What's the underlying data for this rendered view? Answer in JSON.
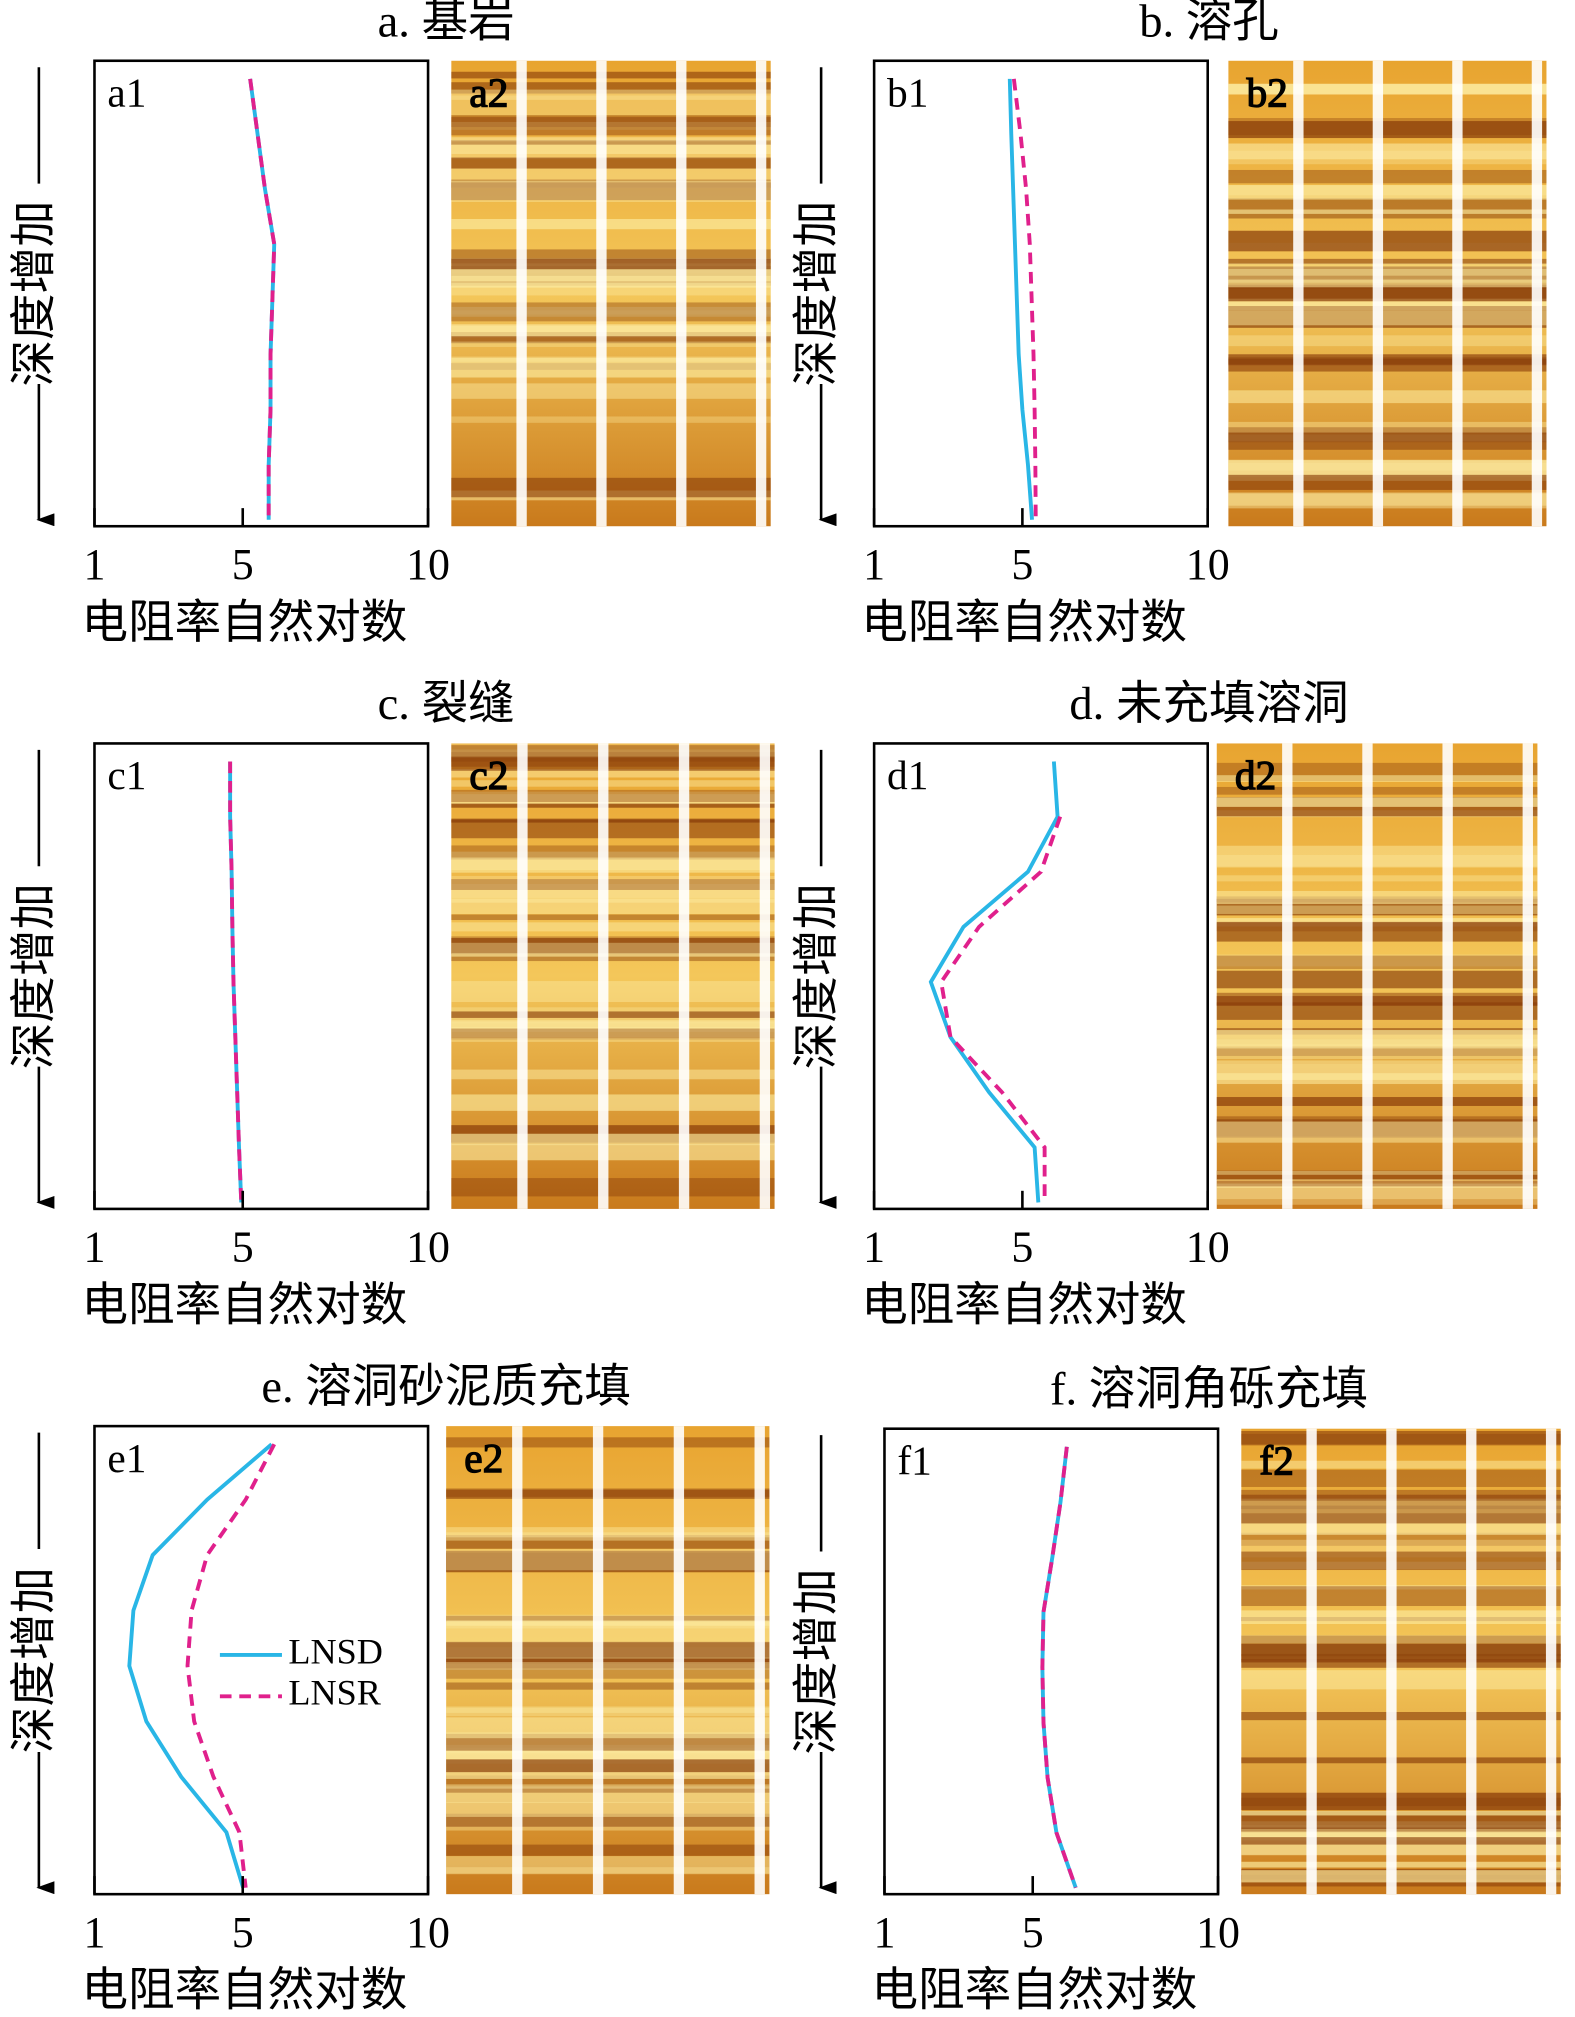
{
  "chart_data": [
    {
      "type": "line",
      "title": "a. 基岩",
      "panel_label": "a1",
      "image_label": "a2",
      "ylabel": "深度增加",
      "xlabel": "电阻率自然对数",
      "categories": [
        null,
        null,
        null,
        null,
        null,
        null,
        null,
        null,
        null
      ],
      "xlim": [
        1,
        10
      ],
      "xticks": [
        1,
        5,
        10
      ],
      "legend": false,
      "series": [
        {
          "name": "LNSD",
          "color": "#29b6e6",
          "style": "solid",
          "values": [
            5.2,
            5.4,
            5.6,
            5.85,
            5.8,
            5.75,
            5.75,
            5.7,
            5.7
          ]
        },
        {
          "name": "LNSR",
          "color": "#e0208c",
          "style": "dashed",
          "values": [
            5.2,
            5.4,
            5.6,
            5.85,
            5.8,
            5.75,
            5.75,
            5.7,
            5.7
          ]
        }
      ]
    },
    {
      "type": "line",
      "title": "b. 溶孔",
      "panel_label": "b1",
      "image_label": "b2",
      "ylabel": "深度增加",
      "xlabel": "电阻率自然对数",
      "categories": [
        null,
        null,
        null,
        null,
        null,
        null,
        null,
        null,
        null
      ],
      "xlim": [
        1,
        10
      ],
      "xticks": [
        1,
        5,
        10
      ],
      "legend": false,
      "series": [
        {
          "name": "LNSD",
          "color": "#29b6e6",
          "style": "solid",
          "values": [
            4.66,
            4.7,
            4.75,
            4.8,
            4.85,
            4.9,
            5.0,
            5.15,
            5.26
          ]
        },
        {
          "name": "LNSR",
          "color": "#e0208c",
          "style": "dashed",
          "values": [
            4.77,
            4.95,
            5.1,
            5.2,
            5.25,
            5.3,
            5.33,
            5.35,
            5.36
          ]
        }
      ]
    },
    {
      "type": "line",
      "title": "c. 裂缝",
      "panel_label": "c1",
      "image_label": "c2",
      "ylabel": "深度增加",
      "xlabel": "电阻率自然对数",
      "categories": [
        null,
        null,
        null,
        null,
        null,
        null,
        null,
        null,
        null
      ],
      "xlim": [
        1,
        10
      ],
      "xticks": [
        1,
        5,
        10
      ],
      "legend": false,
      "series": [
        {
          "name": "LNSD",
          "color": "#29b6e6",
          "style": "solid",
          "values": [
            4.66,
            4.66,
            4.7,
            4.72,
            4.75,
            4.8,
            4.85,
            4.9,
            4.96
          ]
        },
        {
          "name": "LNSR",
          "color": "#e0208c",
          "style": "dashed",
          "values": [
            4.66,
            4.66,
            4.7,
            4.72,
            4.75,
            4.8,
            4.85,
            4.9,
            4.96
          ]
        }
      ]
    },
    {
      "type": "line",
      "title": "d. 未充填溶洞",
      "panel_label": "d1",
      "image_label": "d2",
      "ylabel": "深度增加",
      "xlabel": "电阻率自然对数",
      "categories": [
        null,
        null,
        null,
        null,
        null,
        null,
        null,
        null,
        null
      ],
      "xlim": [
        1,
        10
      ],
      "xticks": [
        1,
        5,
        10
      ],
      "legend": false,
      "series": [
        {
          "name": "LNSD",
          "color": "#29b6e6",
          "style": "solid",
          "values": [
            5.85,
            5.95,
            5.15,
            3.41,
            2.53,
            3.06,
            4.1,
            5.33,
            5.43
          ]
        },
        {
          "name": "LNSR",
          "color": "#e0208c",
          "style": "dashed",
          "values": [
            null,
            6.02,
            5.5,
            3.83,
            2.81,
            3.06,
            4.45,
            5.6,
            5.6
          ]
        }
      ]
    },
    {
      "type": "line",
      "title": "e. 溶洞砂泥质充填",
      "panel_label": "e1",
      "image_label": "e2",
      "ylabel": "深度增加",
      "xlabel": "电阻率自然对数",
      "categories": [
        null,
        null,
        null,
        null,
        null,
        null,
        null,
        null,
        null
      ],
      "xlim": [
        1,
        10
      ],
      "xticks": [
        1,
        5,
        10
      ],
      "legend": true,
      "series": [
        {
          "name": "LNSD",
          "color": "#29b6e6",
          "style": "solid",
          "values": [
            5.78,
            4.04,
            2.57,
            2.05,
            1.94,
            2.4,
            3.34,
            4.56,
            5.01
          ]
        },
        {
          "name": "LNSR",
          "color": "#e0208c",
          "style": "dashed",
          "values": [
            5.85,
            5.08,
            4.04,
            3.62,
            3.51,
            3.69,
            4.21,
            4.91,
            5.08
          ]
        }
      ]
    },
    {
      "type": "line",
      "title": "f. 溶洞角砾充填",
      "panel_label": "f1",
      "image_label": "f2",
      "ylabel": "深度增加",
      "xlabel": "电阻率自然对数",
      "categories": [
        null,
        null,
        null,
        null,
        null,
        null,
        null,
        null,
        null
      ],
      "xlim": [
        1,
        10
      ],
      "xticks": [
        1,
        5,
        10
      ],
      "legend": false,
      "series": [
        {
          "name": "LNSD",
          "color": "#29b6e6",
          "style": "solid",
          "values": [
            5.92,
            5.75,
            5.53,
            5.29,
            5.26,
            5.29,
            5.4,
            5.64,
            6.16
          ]
        },
        {
          "name": "LNSR",
          "color": "#e0208c",
          "style": "dashed",
          "values": [
            5.92,
            5.75,
            5.53,
            5.29,
            5.26,
            5.29,
            5.4,
            5.64,
            6.16
          ]
        }
      ]
    }
  ]
}
